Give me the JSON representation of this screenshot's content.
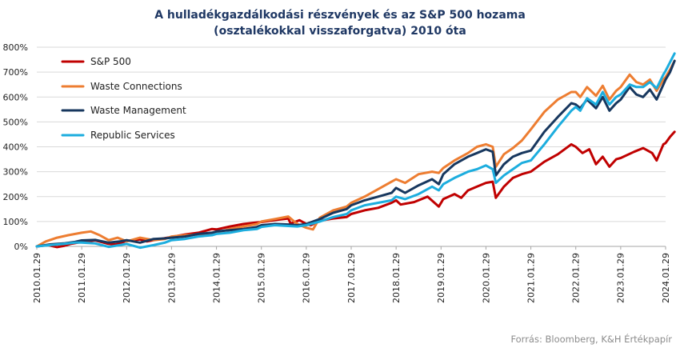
{
  "chart_data": {
    "type": "line",
    "title_lines": [
      "A hulladékgazdálkodási részvények és az S&P 500 hozama",
      "(osztalékokkal visszaforgatva) 2010 óta"
    ],
    "xlabel": "",
    "ylabel": "",
    "ylim": [
      0,
      800
    ],
    "y_ticks": [
      "0%",
      "100%",
      "200%",
      "300%",
      "400%",
      "500%",
      "600%",
      "700%",
      "800%"
    ],
    "y_tick_values": [
      0,
      100,
      200,
      300,
      400,
      500,
      600,
      700,
      800
    ],
    "x_ticks": [
      "2010.01.29",
      "2011.01.29",
      "2012.01.29",
      "2013.01.29",
      "2014.01.29",
      "2015.01.29",
      "2016.01.29",
      "2017.01.29",
      "2018.01.29",
      "2019.01.29",
      "2020.01.29",
      "2021.01.29",
      "2022.01.29",
      "2023.01.29",
      "2024.01.29"
    ],
    "x_tick_values": [
      2010,
      2011,
      2012,
      2013,
      2014,
      2015,
      2016,
      2017,
      2018,
      2019,
      2020,
      2021,
      2022,
      2023,
      2024
    ],
    "xlim": [
      2010.0,
      2024.0
    ],
    "grid": "horizontal",
    "legend_position": "top-left",
    "source": "Forrás: Bloomberg, K&H Értékpapír",
    "series": [
      {
        "name": "S&P 500",
        "color": "#c00000",
        "points": [
          [
            2010.0,
            0
          ],
          [
            2010.25,
            5
          ],
          [
            2010.45,
            -3
          ],
          [
            2010.6,
            2
          ],
          [
            2010.75,
            10
          ],
          [
            2011.0,
            18
          ],
          [
            2011.3,
            24
          ],
          [
            2011.6,
            10
          ],
          [
            2011.75,
            8
          ],
          [
            2012.0,
            22
          ],
          [
            2012.3,
            28
          ],
          [
            2012.45,
            20
          ],
          [
            2012.75,
            30
          ],
          [
            2013.0,
            38
          ],
          [
            2013.3,
            48
          ],
          [
            2013.6,
            55
          ],
          [
            2013.9,
            70
          ],
          [
            2014.0,
            68
          ],
          [
            2014.3,
            80
          ],
          [
            2014.6,
            90
          ],
          [
            2014.85,
            95
          ],
          [
            2015.0,
            98
          ],
          [
            2015.4,
            108
          ],
          [
            2015.6,
            112
          ],
          [
            2015.65,
            92
          ],
          [
            2015.85,
            105
          ],
          [
            2016.0,
            90
          ],
          [
            2016.1,
            85
          ],
          [
            2016.3,
            103
          ],
          [
            2016.6,
            112
          ],
          [
            2016.9,
            118
          ],
          [
            2017.0,
            130
          ],
          [
            2017.3,
            145
          ],
          [
            2017.6,
            155
          ],
          [
            2017.9,
            175
          ],
          [
            2018.0,
            185
          ],
          [
            2018.1,
            168
          ],
          [
            2018.4,
            178
          ],
          [
            2018.7,
            200
          ],
          [
            2018.95,
            160
          ],
          [
            2019.05,
            190
          ],
          [
            2019.3,
            210
          ],
          [
            2019.45,
            195
          ],
          [
            2019.6,
            225
          ],
          [
            2019.8,
            240
          ],
          [
            2020.0,
            255
          ],
          [
            2020.15,
            260
          ],
          [
            2020.22,
            195
          ],
          [
            2020.4,
            240
          ],
          [
            2020.6,
            275
          ],
          [
            2020.8,
            290
          ],
          [
            2021.0,
            300
          ],
          [
            2021.3,
            340
          ],
          [
            2021.6,
            370
          ],
          [
            2021.9,
            410
          ],
          [
            2022.0,
            400
          ],
          [
            2022.15,
            375
          ],
          [
            2022.3,
            390
          ],
          [
            2022.45,
            330
          ],
          [
            2022.6,
            360
          ],
          [
            2022.75,
            320
          ],
          [
            2022.9,
            350
          ],
          [
            2023.0,
            355
          ],
          [
            2023.3,
            380
          ],
          [
            2023.5,
            395
          ],
          [
            2023.7,
            375
          ],
          [
            2023.8,
            345
          ],
          [
            2023.95,
            410
          ],
          [
            2024.0,
            415
          ],
          [
            2024.1,
            440
          ],
          [
            2024.2,
            460
          ]
        ]
      },
      {
        "name": "Waste Connections",
        "color": "#ed7d31",
        "points": [
          [
            2010.0,
            0
          ],
          [
            2010.2,
            20
          ],
          [
            2010.45,
            35
          ],
          [
            2010.7,
            45
          ],
          [
            2011.0,
            55
          ],
          [
            2011.2,
            60
          ],
          [
            2011.4,
            45
          ],
          [
            2011.6,
            25
          ],
          [
            2011.8,
            35
          ],
          [
            2012.0,
            20
          ],
          [
            2012.3,
            35
          ],
          [
            2012.6,
            25
          ],
          [
            2012.85,
            30
          ],
          [
            2013.0,
            40
          ],
          [
            2013.3,
            45
          ],
          [
            2013.6,
            48
          ],
          [
            2013.9,
            55
          ],
          [
            2014.0,
            55
          ],
          [
            2014.3,
            70
          ],
          [
            2014.6,
            80
          ],
          [
            2014.9,
            90
          ],
          [
            2015.0,
            100
          ],
          [
            2015.3,
            110
          ],
          [
            2015.6,
            120
          ],
          [
            2015.8,
            90
          ],
          [
            2016.0,
            75
          ],
          [
            2016.15,
            68
          ],
          [
            2016.3,
            115
          ],
          [
            2016.6,
            145
          ],
          [
            2016.9,
            160
          ],
          [
            2017.0,
            175
          ],
          [
            2017.3,
            200
          ],
          [
            2017.6,
            230
          ],
          [
            2017.9,
            260
          ],
          [
            2018.0,
            270
          ],
          [
            2018.2,
            255
          ],
          [
            2018.5,
            290
          ],
          [
            2018.8,
            300
          ],
          [
            2018.95,
            295
          ],
          [
            2019.05,
            315
          ],
          [
            2019.3,
            345
          ],
          [
            2019.6,
            375
          ],
          [
            2019.8,
            400
          ],
          [
            2020.0,
            410
          ],
          [
            2020.15,
            400
          ],
          [
            2020.22,
            320
          ],
          [
            2020.4,
            370
          ],
          [
            2020.6,
            395
          ],
          [
            2020.8,
            425
          ],
          [
            2021.0,
            470
          ],
          [
            2021.3,
            540
          ],
          [
            2021.6,
            590
          ],
          [
            2021.9,
            620
          ],
          [
            2022.0,
            620
          ],
          [
            2022.1,
            600
          ],
          [
            2022.25,
            640
          ],
          [
            2022.45,
            605
          ],
          [
            2022.6,
            645
          ],
          [
            2022.75,
            590
          ],
          [
            2022.9,
            625
          ],
          [
            2023.0,
            640
          ],
          [
            2023.2,
            690
          ],
          [
            2023.35,
            660
          ],
          [
            2023.5,
            650
          ],
          [
            2023.65,
            670
          ],
          [
            2023.8,
            625
          ],
          [
            2023.95,
            670
          ],
          [
            2024.0,
            680
          ],
          [
            2024.1,
            710
          ],
          [
            2024.2,
            745
          ]
        ]
      },
      {
        "name": "Waste Management",
        "color": "#17375e",
        "points": [
          [
            2010.0,
            0
          ],
          [
            2010.3,
            8
          ],
          [
            2010.6,
            12
          ],
          [
            2010.85,
            18
          ],
          [
            2011.0,
            24
          ],
          [
            2011.3,
            26
          ],
          [
            2011.6,
            15
          ],
          [
            2011.85,
            20
          ],
          [
            2012.0,
            25
          ],
          [
            2012.3,
            15
          ],
          [
            2012.6,
            30
          ],
          [
            2012.85,
            32
          ],
          [
            2013.0,
            35
          ],
          [
            2013.3,
            40
          ],
          [
            2013.6,
            50
          ],
          [
            2013.9,
            55
          ],
          [
            2014.0,
            60
          ],
          [
            2014.3,
            65
          ],
          [
            2014.6,
            70
          ],
          [
            2014.9,
            78
          ],
          [
            2015.0,
            85
          ],
          [
            2015.3,
            90
          ],
          [
            2015.6,
            88
          ],
          [
            2015.8,
            85
          ],
          [
            2016.0,
            90
          ],
          [
            2016.3,
            110
          ],
          [
            2016.6,
            135
          ],
          [
            2016.9,
            150
          ],
          [
            2017.0,
            165
          ],
          [
            2017.3,
            185
          ],
          [
            2017.6,
            200
          ],
          [
            2017.9,
            215
          ],
          [
            2018.0,
            235
          ],
          [
            2018.2,
            215
          ],
          [
            2018.5,
            245
          ],
          [
            2018.8,
            270
          ],
          [
            2018.95,
            250
          ],
          [
            2019.05,
            290
          ],
          [
            2019.3,
            330
          ],
          [
            2019.6,
            360
          ],
          [
            2019.8,
            375
          ],
          [
            2020.0,
            390
          ],
          [
            2020.15,
            380
          ],
          [
            2020.22,
            285
          ],
          [
            2020.4,
            330
          ],
          [
            2020.6,
            360
          ],
          [
            2020.8,
            375
          ],
          [
            2021.0,
            385
          ],
          [
            2021.3,
            460
          ],
          [
            2021.6,
            520
          ],
          [
            2021.9,
            575
          ],
          [
            2022.0,
            570
          ],
          [
            2022.1,
            555
          ],
          [
            2022.25,
            590
          ],
          [
            2022.45,
            555
          ],
          [
            2022.6,
            600
          ],
          [
            2022.75,
            545
          ],
          [
            2022.9,
            575
          ],
          [
            2023.0,
            590
          ],
          [
            2023.2,
            640
          ],
          [
            2023.35,
            610
          ],
          [
            2023.5,
            600
          ],
          [
            2023.65,
            630
          ],
          [
            2023.8,
            590
          ],
          [
            2023.95,
            650
          ],
          [
            2024.0,
            670
          ],
          [
            2024.1,
            700
          ],
          [
            2024.2,
            745
          ]
        ]
      },
      {
        "name": "Republic Services",
        "color": "#1cadde",
        "points": [
          [
            2010.0,
            0
          ],
          [
            2010.3,
            5
          ],
          [
            2010.6,
            10
          ],
          [
            2010.85,
            15
          ],
          [
            2011.0,
            15
          ],
          [
            2011.3,
            12
          ],
          [
            2011.6,
            -2
          ],
          [
            2011.85,
            5
          ],
          [
            2012.0,
            10
          ],
          [
            2012.3,
            -5
          ],
          [
            2012.6,
            5
          ],
          [
            2012.85,
            15
          ],
          [
            2013.0,
            25
          ],
          [
            2013.3,
            30
          ],
          [
            2013.6,
            40
          ],
          [
            2013.9,
            45
          ],
          [
            2014.0,
            50
          ],
          [
            2014.3,
            55
          ],
          [
            2014.6,
            65
          ],
          [
            2014.9,
            70
          ],
          [
            2015.0,
            78
          ],
          [
            2015.3,
            85
          ],
          [
            2015.6,
            82
          ],
          [
            2015.8,
            80
          ],
          [
            2016.0,
            85
          ],
          [
            2016.3,
            100
          ],
          [
            2016.6,
            118
          ],
          [
            2016.9,
            130
          ],
          [
            2017.0,
            145
          ],
          [
            2017.3,
            165
          ],
          [
            2017.6,
            175
          ],
          [
            2017.9,
            185
          ],
          [
            2018.0,
            200
          ],
          [
            2018.2,
            190
          ],
          [
            2018.5,
            210
          ],
          [
            2018.8,
            240
          ],
          [
            2018.95,
            225
          ],
          [
            2019.05,
            250
          ],
          [
            2019.3,
            275
          ],
          [
            2019.6,
            300
          ],
          [
            2019.8,
            310
          ],
          [
            2020.0,
            325
          ],
          [
            2020.15,
            310
          ],
          [
            2020.22,
            255
          ],
          [
            2020.4,
            285
          ],
          [
            2020.6,
            310
          ],
          [
            2020.8,
            335
          ],
          [
            2021.0,
            345
          ],
          [
            2021.3,
            410
          ],
          [
            2021.6,
            480
          ],
          [
            2021.9,
            545
          ],
          [
            2022.0,
            560
          ],
          [
            2022.1,
            545
          ],
          [
            2022.25,
            595
          ],
          [
            2022.45,
            570
          ],
          [
            2022.6,
            620
          ],
          [
            2022.75,
            570
          ],
          [
            2022.9,
            600
          ],
          [
            2023.0,
            610
          ],
          [
            2023.2,
            650
          ],
          [
            2023.35,
            640
          ],
          [
            2023.5,
            640
          ],
          [
            2023.65,
            660
          ],
          [
            2023.8,
            635
          ],
          [
            2023.95,
            690
          ],
          [
            2024.0,
            705
          ],
          [
            2024.1,
            740
          ],
          [
            2024.2,
            775
          ]
        ]
      }
    ]
  }
}
